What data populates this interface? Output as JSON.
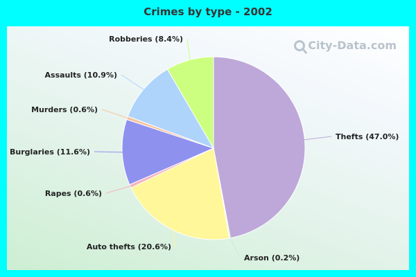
{
  "header": {
    "title": "Crimes by type - 2002"
  },
  "watermark": {
    "text": "City-Data.com",
    "icon": "magnifier-icon"
  },
  "chart_data": {
    "type": "pie",
    "title": "Crimes by type - 2002",
    "slices": [
      {
        "label": "Thefts (47.0%)",
        "value": 47.0,
        "color": "#bea8d9"
      },
      {
        "label": "Arson (0.2%)",
        "value": 0.2,
        "color": "#d8e8d0"
      },
      {
        "label": "Auto thefts (20.6%)",
        "value": 20.6,
        "color": "#fff799"
      },
      {
        "label": "Rapes (0.6%)",
        "value": 0.6,
        "color": "#f6b3bd"
      },
      {
        "label": "Burglaries (11.6%)",
        "value": 11.6,
        "color": "#8f91ef"
      },
      {
        "label": "Murders (0.6%)",
        "value": 0.6,
        "color": "#f7c6a3"
      },
      {
        "label": "Assaults (10.9%)",
        "value": 10.9,
        "color": "#aed4fb"
      },
      {
        "label": "Robberies (8.4%)",
        "value": 8.4,
        "color": "#ccff7f"
      }
    ]
  }
}
